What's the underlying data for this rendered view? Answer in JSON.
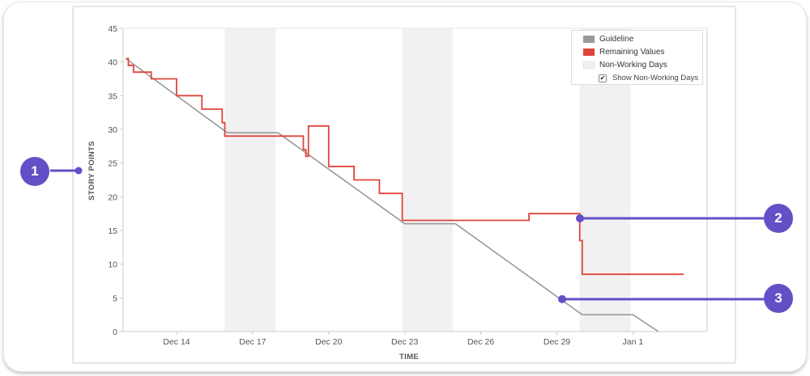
{
  "chart_data": {
    "type": "line",
    "title": "",
    "xlabel": "TIME",
    "ylabel": "STORY POINTS",
    "ylim": [
      0,
      45
    ],
    "yticks": [
      0,
      5,
      10,
      15,
      20,
      25,
      30,
      35,
      40,
      45
    ],
    "xticks": [
      "Dec 14",
      "Dec 17",
      "Dec 20",
      "Dec 23",
      "Dec 26",
      "Dec 29",
      "Jan 1"
    ],
    "grid": false,
    "legend_position": "top-right",
    "non_working_days": [
      {
        "from": "Dec 15.9",
        "to": "Dec 17.9"
      },
      {
        "from": "Dec 22.9",
        "to": "Dec 24.9"
      },
      {
        "from": "Dec 29.9",
        "to": "Dec 31.9"
      }
    ],
    "series": [
      {
        "name": "Guideline",
        "color": "#9a9a9a",
        "points": [
          {
            "x": "Dec 12",
            "y": 40.5
          },
          {
            "x": "Dec 16",
            "y": 29.5
          },
          {
            "x": "Dec 18",
            "y": 29.5
          },
          {
            "x": "Dec 23",
            "y": 16
          },
          {
            "x": "Dec 25",
            "y": 16
          },
          {
            "x": "Dec 30",
            "y": 2.5
          },
          {
            "x": "Jan 1",
            "y": 2.5
          },
          {
            "x": "Jan 2",
            "y": 0
          }
        ]
      },
      {
        "name": "Remaining Values",
        "color": "#e0443a",
        "points": [
          {
            "x": "Dec 12",
            "y": 40.5
          },
          {
            "x": "Dec 12.1",
            "y": 39.5
          },
          {
            "x": "Dec 12.3",
            "y": 38.5
          },
          {
            "x": "Dec 13",
            "y": 37.5
          },
          {
            "x": "Dec 14",
            "y": 35
          },
          {
            "x": "Dec 15",
            "y": 33
          },
          {
            "x": "Dec 15.8",
            "y": 31
          },
          {
            "x": "Dec 15.9",
            "y": 29
          },
          {
            "x": "Dec 19",
            "y": 27
          },
          {
            "x": "Dec 19.1",
            "y": 26
          },
          {
            "x": "Dec 19.2",
            "y": 30.5
          },
          {
            "x": "Dec 20",
            "y": 24.5
          },
          {
            "x": "Dec 21",
            "y": 22.5
          },
          {
            "x": "Dec 22",
            "y": 20.5
          },
          {
            "x": "Dec 22.9",
            "y": 16.5
          },
          {
            "x": "Dec 27.9",
            "y": 17.5
          },
          {
            "x": "Dec 29.9",
            "y": 13.5
          },
          {
            "x": "Dec 30",
            "y": 8.5
          },
          {
            "x": "Jan 3",
            "y": 8.5
          }
        ]
      },
      {
        "name": "Non-Working Days",
        "color": "#f1f1f1"
      }
    ]
  },
  "legend": {
    "items": [
      {
        "label": "Guideline",
        "color": "#9a9a9a"
      },
      {
        "label": "Remaining Values",
        "color": "#e0443a"
      },
      {
        "label": "Non-Working Days",
        "color": "#f1f1f1"
      }
    ],
    "toggle_label": "Show Non-Working Days",
    "toggle_checked": true
  },
  "callouts": [
    {
      "number": "1",
      "target": "y-axis label"
    },
    {
      "number": "2",
      "target": "remaining values line"
    },
    {
      "number": "3",
      "target": "guideline"
    }
  ],
  "colors": {
    "callout": "#6250c6",
    "remaining": "#e0443a",
    "guideline": "#9a9a9a",
    "non_working": "#f1f1f1"
  }
}
